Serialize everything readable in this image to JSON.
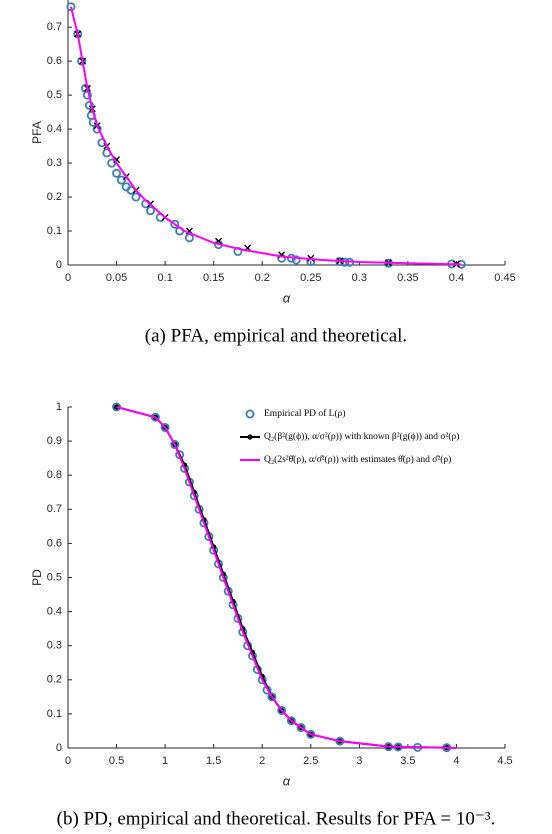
{
  "chart_data": [
    {
      "type": "line",
      "caption": "(a) PFA, empirical and theoretical.",
      "xlabel": "α",
      "ylabel": "PFA",
      "xlim": [
        0,
        0.45
      ],
      "ylim": [
        0,
        0.78
      ],
      "xticks": [
        0,
        0.05,
        0.1,
        0.15,
        0.2,
        0.25,
        0.3,
        0.35,
        0.4,
        0.45
      ],
      "yticks": [
        0,
        0.1,
        0.2,
        0.3,
        0.4,
        0.5,
        0.6,
        0.7
      ],
      "series": [
        {
          "color": "#3b7fb2",
          "marker": "o",
          "line": false,
          "x": [
            0.003,
            0.01,
            0.014,
            0.018,
            0.02,
            0.022,
            0.024,
            0.026,
            0.03,
            0.035,
            0.04,
            0.045,
            0.05,
            0.055,
            0.06,
            0.065,
            0.07,
            0.08,
            0.085,
            0.095,
            0.11,
            0.115,
            0.125,
            0.155,
            0.175,
            0.22,
            0.23,
            0.235,
            0.25,
            0.28,
            0.285,
            0.29,
            0.33,
            0.395,
            0.405
          ],
          "values": [
            0.76,
            0.68,
            0.6,
            0.52,
            0.5,
            0.47,
            0.44,
            0.42,
            0.4,
            0.36,
            0.33,
            0.3,
            0.27,
            0.25,
            0.23,
            0.22,
            0.2,
            0.18,
            0.16,
            0.14,
            0.12,
            0.1,
            0.08,
            0.06,
            0.04,
            0.02,
            0.02,
            0.015,
            0.01,
            0.01,
            0.008,
            0.008,
            0.005,
            0.003,
            0.002
          ]
        },
        {
          "color": "#000000",
          "marker": "x",
          "line": false,
          "x": [
            0.01,
            0.015,
            0.02,
            0.025,
            0.03,
            0.04,
            0.05,
            0.06,
            0.07,
            0.085,
            0.1,
            0.125,
            0.155,
            0.185,
            0.22,
            0.25,
            0.28,
            0.33,
            0.4
          ],
          "values": [
            0.68,
            0.6,
            0.52,
            0.46,
            0.41,
            0.35,
            0.31,
            0.26,
            0.22,
            0.18,
            0.14,
            0.1,
            0.07,
            0.05,
            0.03,
            0.02,
            0.012,
            0.007,
            0.003
          ]
        },
        {
          "color": "#ff00ff",
          "marker": "none",
          "line": true,
          "x": [
            0.003,
            0.01,
            0.015,
            0.02,
            0.025,
            0.03,
            0.04,
            0.05,
            0.06,
            0.07,
            0.08,
            0.1,
            0.12,
            0.15,
            0.18,
            0.22,
            0.26,
            0.3,
            0.35,
            0.405
          ],
          "values": [
            0.76,
            0.68,
            0.6,
            0.52,
            0.46,
            0.41,
            0.35,
            0.3,
            0.26,
            0.22,
            0.19,
            0.14,
            0.1,
            0.065,
            0.045,
            0.025,
            0.015,
            0.009,
            0.005,
            0.002
          ]
        }
      ]
    },
    {
      "type": "line",
      "caption": "(b) PD, empirical and theoretical. Results for PFA = 10⁻³.",
      "xlabel": "α",
      "ylabel": "PD",
      "xlim": [
        0,
        4.5
      ],
      "ylim": [
        0,
        1
      ],
      "xticks": [
        0,
        0.5,
        1,
        1.5,
        2,
        2.5,
        3,
        3.5,
        4,
        4.5
      ],
      "yticks": [
        0,
        0.1,
        0.2,
        0.3,
        0.4,
        0.5,
        0.6,
        0.7,
        0.8,
        0.9,
        1
      ],
      "legend": "upper right",
      "series": [
        {
          "name": "Empirical PD of L(ρ)",
          "color": "#3b7fb2",
          "marker": "o",
          "line": false,
          "x": [
            0.5,
            0.9,
            1.0,
            1.1,
            1.15,
            1.2,
            1.25,
            1.3,
            1.35,
            1.4,
            1.45,
            1.5,
            1.55,
            1.6,
            1.65,
            1.7,
            1.75,
            1.8,
            1.85,
            1.9,
            1.95,
            2.0,
            2.05,
            2.1,
            2.2,
            2.3,
            2.4,
            2.5,
            2.8,
            3.3,
            3.4,
            3.6,
            3.9
          ],
          "values": [
            1,
            0.97,
            0.94,
            0.89,
            0.86,
            0.82,
            0.78,
            0.74,
            0.7,
            0.66,
            0.62,
            0.58,
            0.54,
            0.5,
            0.46,
            0.42,
            0.38,
            0.34,
            0.3,
            0.27,
            0.23,
            0.2,
            0.17,
            0.15,
            0.11,
            0.08,
            0.06,
            0.04,
            0.02,
            0.004,
            0.003,
            0.002,
            0.001
          ]
        },
        {
          "name": "Q₂(β²(g(ϕ)), α/σ²(ρ)) with known β²(g(ϕ)) and σ²(ρ)",
          "color": "#000000",
          "marker": "dot",
          "line": true,
          "x": [
            0.5,
            0.9,
            1.0,
            1.1,
            1.2,
            1.3,
            1.4,
            1.5,
            1.6,
            1.7,
            1.8,
            1.9,
            2.0,
            2.1,
            2.2,
            2.3,
            2.4,
            2.5,
            2.8,
            3.3,
            3.4,
            3.9
          ],
          "values": [
            1,
            0.97,
            0.94,
            0.89,
            0.83,
            0.75,
            0.67,
            0.59,
            0.51,
            0.43,
            0.35,
            0.28,
            0.21,
            0.15,
            0.11,
            0.08,
            0.06,
            0.04,
            0.02,
            0.004,
            0.003,
            0.001
          ]
        },
        {
          "name": "Q₂(2s²θ̂(ρ), α/σ̂²(ρ)) with estimates θ̂(ρ) and σ̂²(ρ)",
          "color": "#ff00ff",
          "marker": "none",
          "line": true,
          "x": [
            0.5,
            0.9,
            1.0,
            1.1,
            1.2,
            1.3,
            1.4,
            1.5,
            1.6,
            1.7,
            1.8,
            1.9,
            2.0,
            2.1,
            2.2,
            2.3,
            2.4,
            2.5,
            2.8,
            3.3,
            4.0
          ],
          "values": [
            1,
            0.97,
            0.94,
            0.89,
            0.82,
            0.74,
            0.66,
            0.58,
            0.5,
            0.42,
            0.34,
            0.27,
            0.2,
            0.15,
            0.11,
            0.08,
            0.06,
            0.04,
            0.02,
            0.004,
            0
          ]
        }
      ]
    }
  ]
}
